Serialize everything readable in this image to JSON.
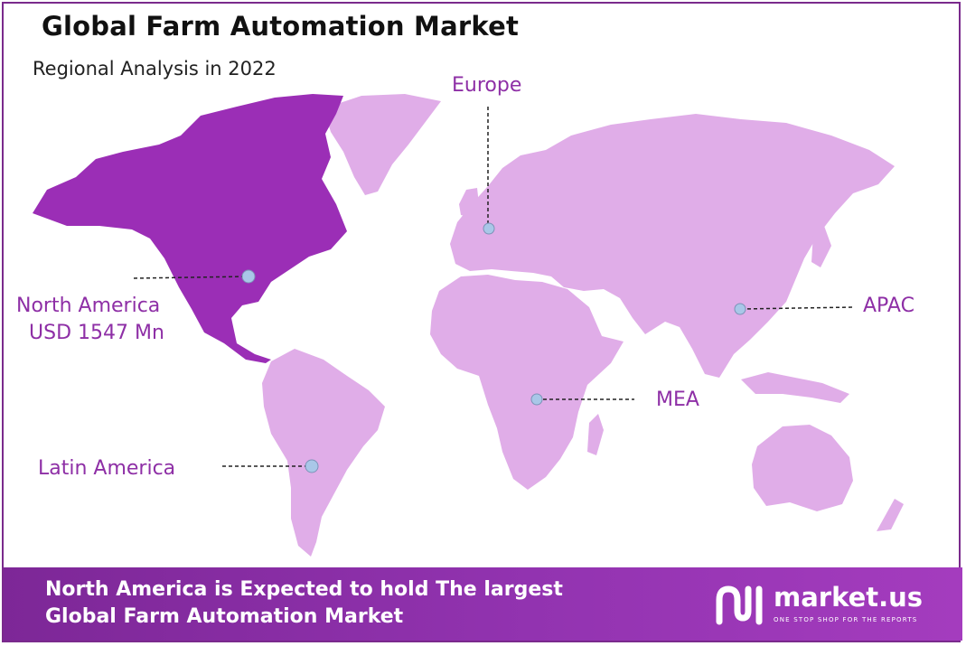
{
  "header": {
    "title": "Global Farm Automation Market",
    "subtitle": "Regional Analysis in 2022"
  },
  "map": {
    "colors": {
      "highlight_region": "#9b2eb6",
      "other_regions": "#e0ade8",
      "marker": "#a9c7e8",
      "label": "#8e2fa6"
    },
    "regions": [
      {
        "id": "north-america",
        "name": "North America",
        "value_label": "USD 1547 Mn",
        "highlighted": true
      },
      {
        "id": "europe",
        "name": "Europe",
        "highlighted": false
      },
      {
        "id": "apac",
        "name": "APAC",
        "highlighted": false
      },
      {
        "id": "mea",
        "name": "MEA",
        "highlighted": false
      },
      {
        "id": "latin-america",
        "name": "Latin America",
        "highlighted": false
      }
    ]
  },
  "footer": {
    "line1": "North America is Expected to hold The largest",
    "line2": "Global Farm Automation Market",
    "brand_name": "market.us",
    "brand_tagline": "ONE STOP SHOP FOR THE REPORTS"
  }
}
